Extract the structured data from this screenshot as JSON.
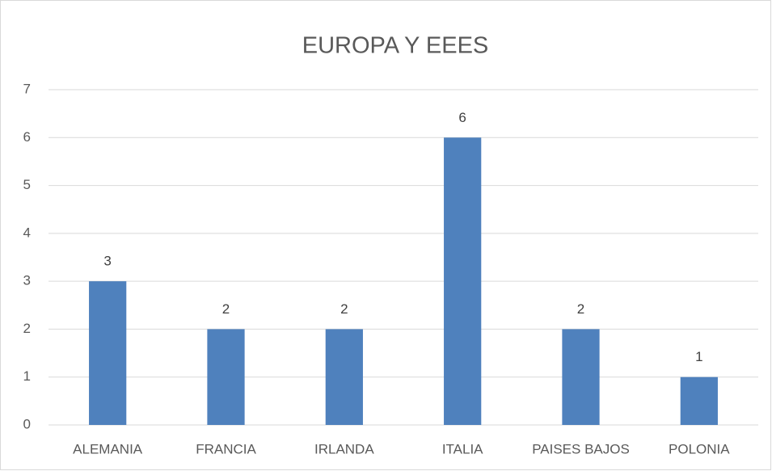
{
  "chart_data": {
    "type": "bar",
    "title": "EUROPA Y EEES",
    "categories": [
      "ALEMANIA",
      "FRANCIA",
      "IRLANDA",
      "ITALIA",
      "PAISES BAJOS",
      "POLONIA"
    ],
    "values": [
      3,
      2,
      2,
      6,
      2,
      1
    ],
    "color": "#4f81bd",
    "ylim": [
      0,
      7
    ],
    "yticks": [
      0,
      1,
      2,
      3,
      4,
      5,
      6,
      7
    ],
    "grid": true,
    "data_labels": true
  }
}
